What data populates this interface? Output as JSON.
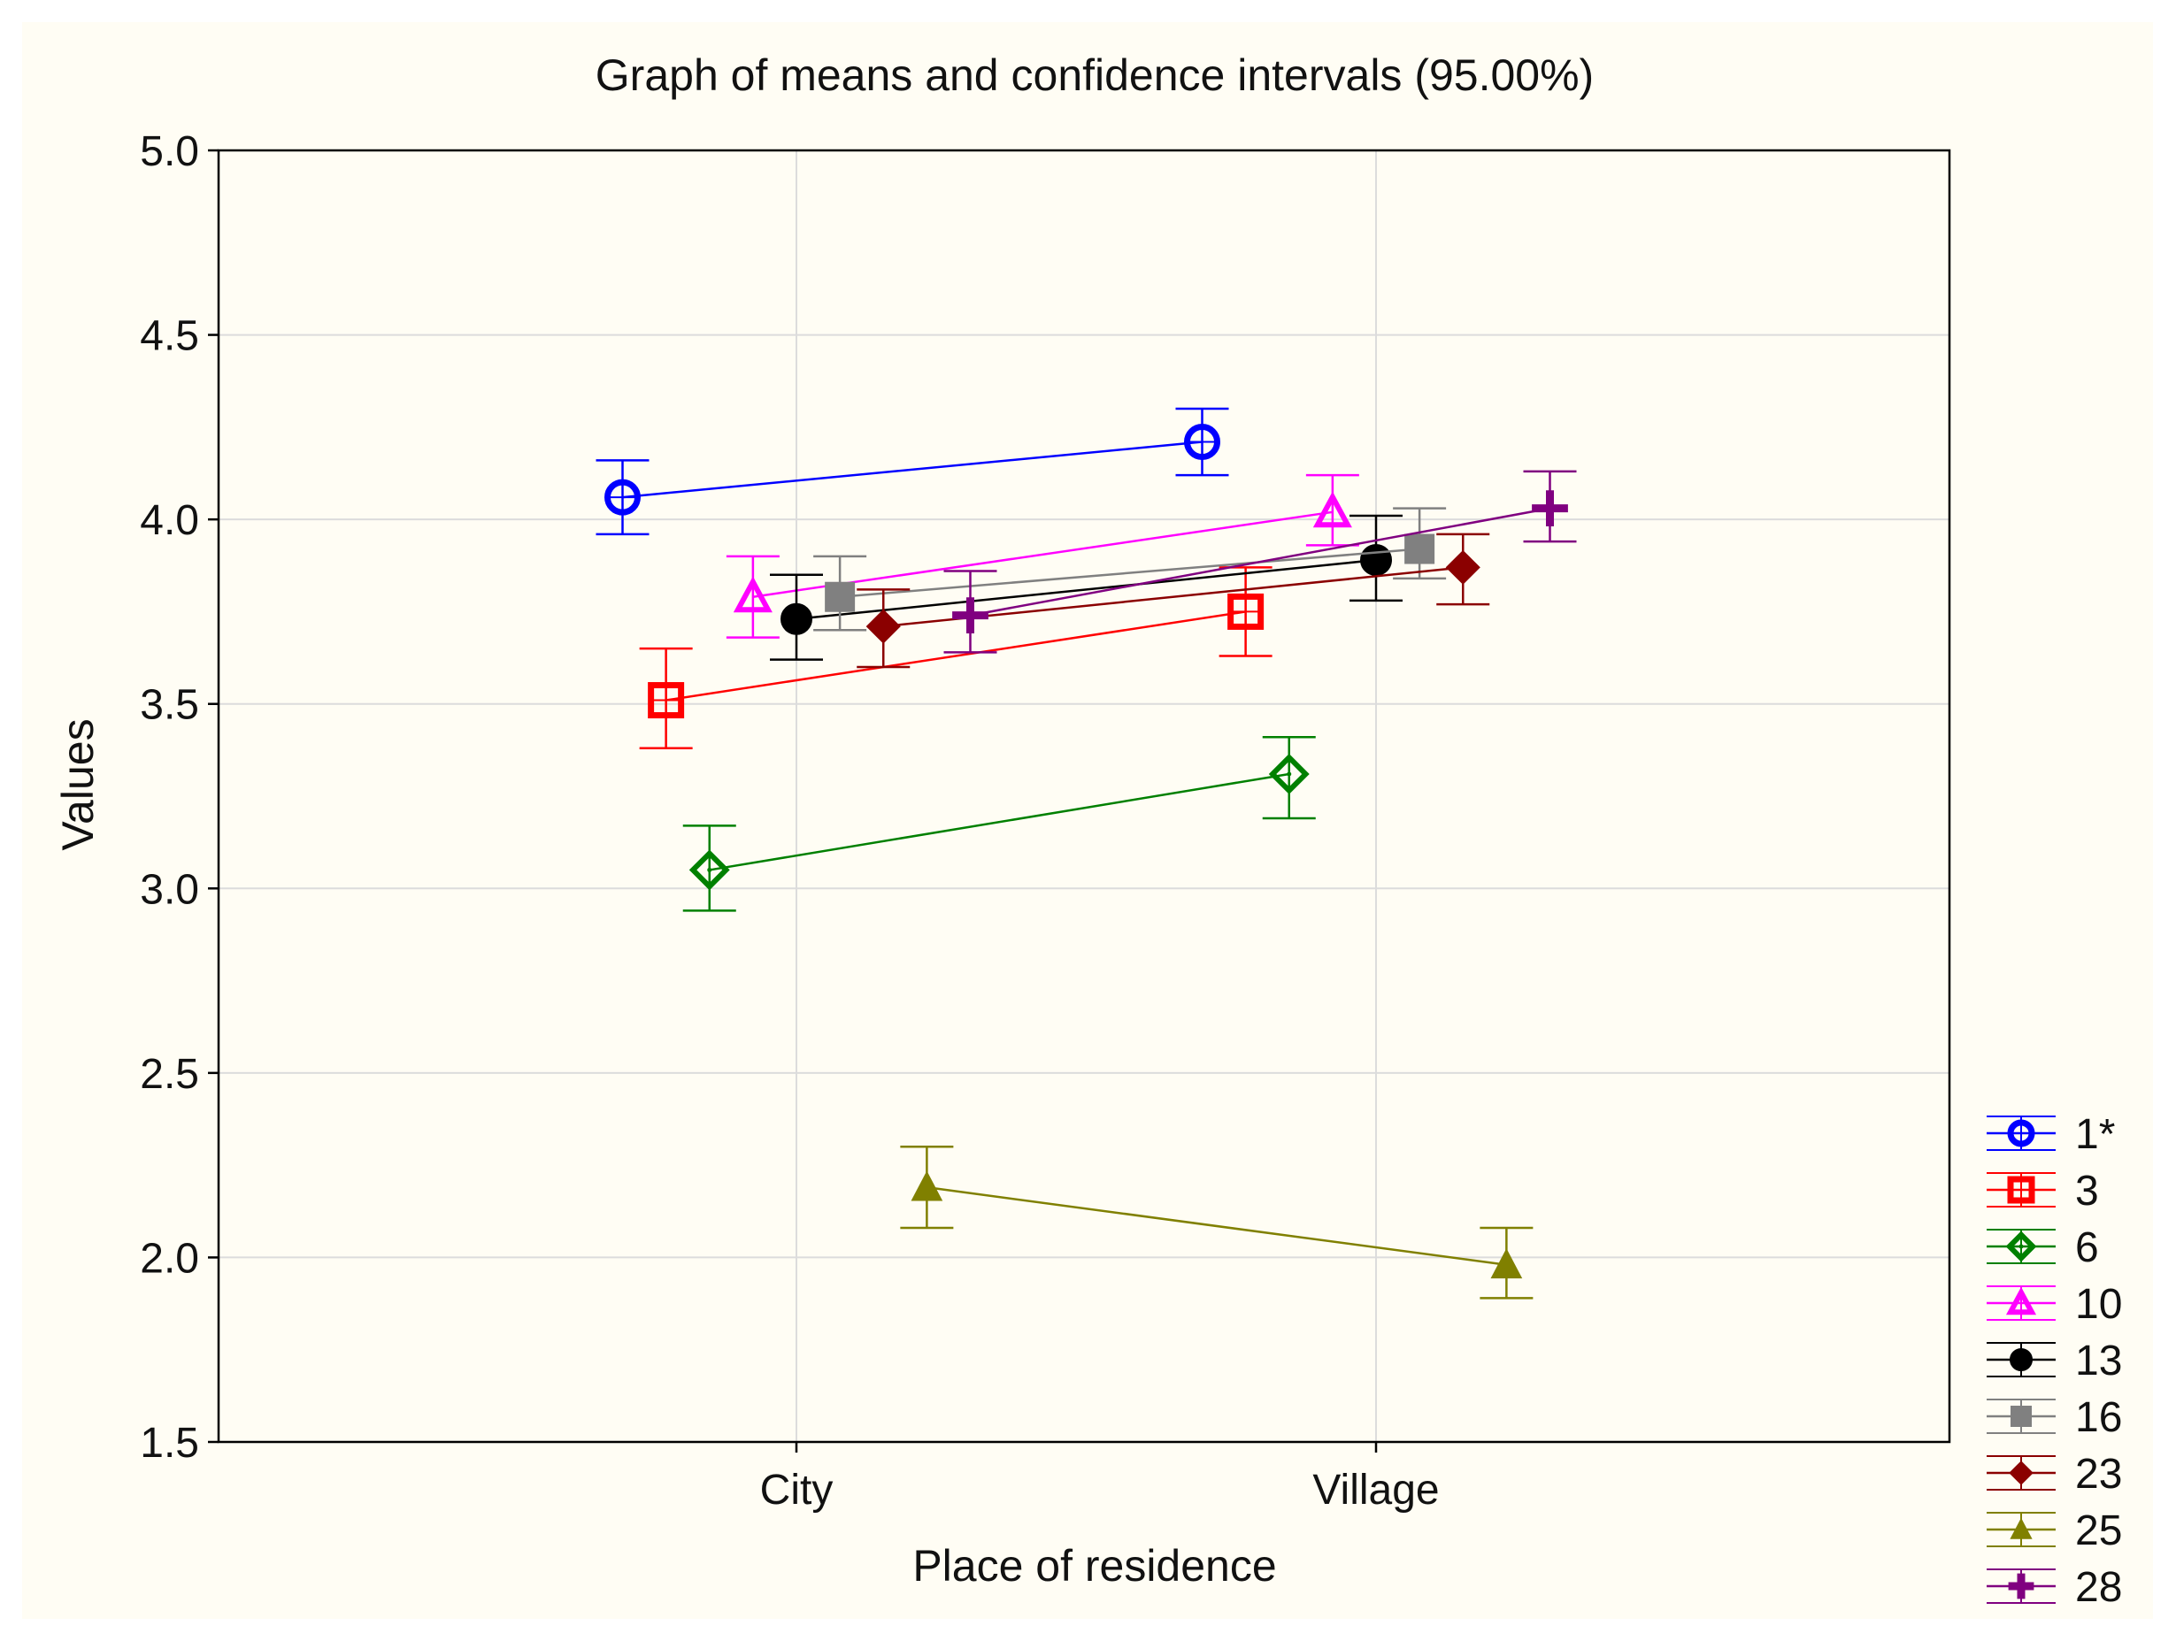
{
  "chart_data": {
    "type": "scatter",
    "title": "Graph of means and confidence intervals (95.00%)",
    "xlabel": "Place of residence",
    "ylabel": "Values",
    "categories": [
      "City",
      "Village"
    ],
    "ylim": [
      1.5,
      5.0
    ],
    "yticks": [
      "1.5",
      "2.0",
      "2.5",
      "3.0",
      "3.5",
      "4.0",
      "4.5",
      "5.0"
    ],
    "grid": true,
    "legend_position": "bottom-right",
    "series": [
      {
        "name": "1*",
        "color": "#0000ff",
        "marker": "circle-open",
        "offset": -0.6,
        "points": [
          {
            "mean": 4.06,
            "low": 3.96,
            "high": 4.16
          },
          {
            "mean": 4.21,
            "low": 4.12,
            "high": 4.3
          }
        ]
      },
      {
        "name": "3",
        "color": "#ff0000",
        "marker": "square-open",
        "offset": -0.45,
        "points": [
          {
            "mean": 3.51,
            "low": 3.38,
            "high": 3.65
          },
          {
            "mean": 3.75,
            "low": 3.63,
            "high": 3.87
          }
        ]
      },
      {
        "name": "6",
        "color": "#008000",
        "marker": "diamond-open",
        "offset": -0.3,
        "points": [
          {
            "mean": 3.05,
            "low": 2.94,
            "high": 3.17
          },
          {
            "mean": 3.31,
            "low": 3.19,
            "high": 3.41
          }
        ]
      },
      {
        "name": "10",
        "color": "#ff00ff",
        "marker": "triangle-open",
        "offset": -0.15,
        "points": [
          {
            "mean": 3.79,
            "low": 3.68,
            "high": 3.9
          },
          {
            "mean": 4.02,
            "low": 3.93,
            "high": 4.12
          }
        ]
      },
      {
        "name": "13",
        "color": "#000000",
        "marker": "circle-filled",
        "offset": 0.0,
        "points": [
          {
            "mean": 3.73,
            "low": 3.62,
            "high": 3.85
          },
          {
            "mean": 3.89,
            "low": 3.78,
            "high": 4.01
          }
        ]
      },
      {
        "name": "16",
        "color": "#808080",
        "marker": "square-filled",
        "offset": 0.15,
        "points": [
          {
            "mean": 3.79,
            "low": 3.7,
            "high": 3.9
          },
          {
            "mean": 3.92,
            "low": 3.84,
            "high": 4.03
          }
        ]
      },
      {
        "name": "23",
        "color": "#8b0000",
        "marker": "diamond-filled",
        "offset": 0.3,
        "points": [
          {
            "mean": 3.71,
            "low": 3.6,
            "high": 3.81
          },
          {
            "mean": 3.87,
            "low": 3.77,
            "high": 3.96
          }
        ]
      },
      {
        "name": "25",
        "color": "#808000",
        "marker": "triangle-filled",
        "offset": 0.45,
        "points": [
          {
            "mean": 2.19,
            "low": 2.08,
            "high": 2.3
          },
          {
            "mean": 1.98,
            "low": 1.89,
            "high": 2.08
          }
        ]
      },
      {
        "name": "28",
        "color": "#800080",
        "marker": "plus",
        "offset": 0.6,
        "points": [
          {
            "mean": 3.74,
            "low": 3.64,
            "high": 3.86
          },
          {
            "mean": 4.03,
            "low": 3.94,
            "high": 4.13
          }
        ]
      }
    ]
  }
}
